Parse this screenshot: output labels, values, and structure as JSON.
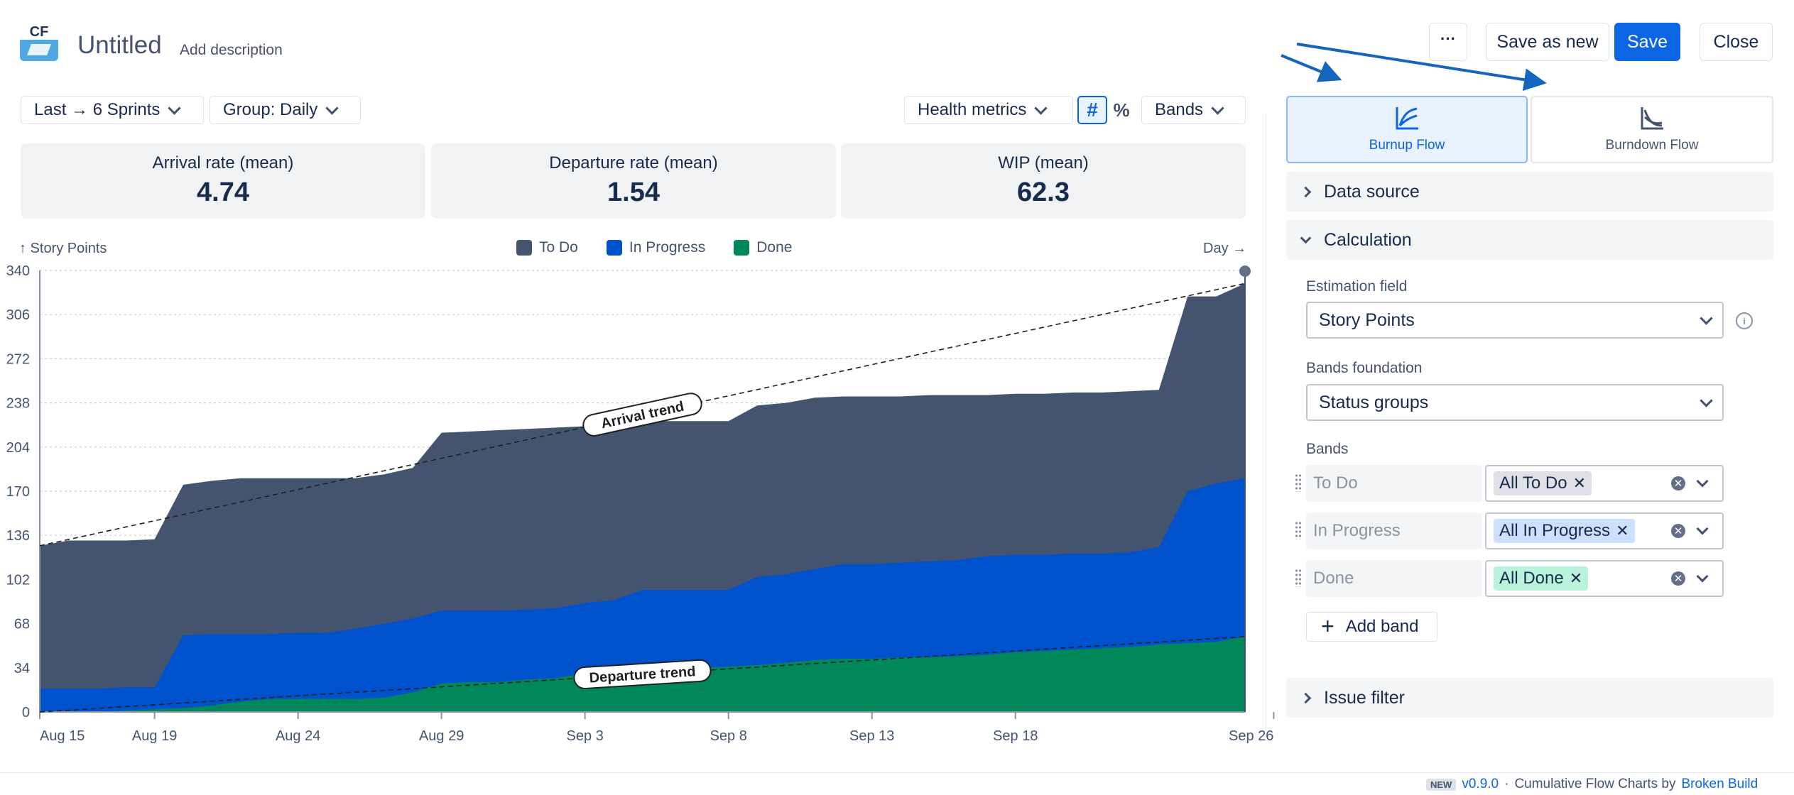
{
  "header": {
    "logo_text": "CF",
    "title": "Untitled",
    "add_description": "Add description",
    "more_label": "···",
    "save_as_new": "Save as new",
    "save": "Save",
    "close": "Close"
  },
  "toolbar": {
    "range": "Last → 6 Sprints",
    "group": "Group: Daily",
    "health_metrics": "Health metrics",
    "count_toggle": "#",
    "percent_toggle": "%",
    "bands": "Bands"
  },
  "metrics": [
    {
      "label": "Arrival rate (mean)",
      "value": "4.74"
    },
    {
      "label": "Departure rate (mean)",
      "value": "1.54"
    },
    {
      "label": "WIP (mean)",
      "value": "62.3"
    }
  ],
  "chart_data": {
    "type": "area",
    "ylabel": "↑ Story Points",
    "xlabel": "Day →",
    "ylim": [
      0,
      340
    ],
    "yticks": [
      0,
      34,
      68,
      102,
      136,
      170,
      204,
      238,
      272,
      306,
      340
    ],
    "xtick_labels": [
      "Aug 15",
      "Aug 19",
      "Aug 24",
      "Aug 29",
      "Sep 3",
      "Sep 8",
      "Sep 13",
      "Sep 18",
      "Sep 26"
    ],
    "xtick_index": [
      0,
      4,
      9,
      14,
      19,
      24,
      29,
      34,
      43
    ],
    "grid": true,
    "legend_placement": "top-center",
    "x": [
      "Aug 15",
      "Aug 16",
      "Aug 17",
      "Aug 18",
      "Aug 19",
      "Aug 20",
      "Aug 21",
      "Aug 22",
      "Aug 23",
      "Aug 24",
      "Aug 25",
      "Aug 26",
      "Aug 27",
      "Aug 28",
      "Aug 29",
      "Aug 30",
      "Aug 31",
      "Sep 1",
      "Sep 2",
      "Sep 3",
      "Sep 4",
      "Sep 5",
      "Sep 6",
      "Sep 7",
      "Sep 8",
      "Sep 9",
      "Sep 10",
      "Sep 11",
      "Sep 12",
      "Sep 13",
      "Sep 14",
      "Sep 15",
      "Sep 16",
      "Sep 17",
      "Sep 18",
      "Sep 19",
      "Sep 20",
      "Sep 21",
      "Sep 22",
      "Sep 23",
      "Sep 24",
      "Sep 25",
      "Sep 26"
    ],
    "series": [
      {
        "name": "Done",
        "color": "#00875a",
        "values": [
          0,
          0,
          0,
          1,
          2,
          3,
          5,
          8,
          10,
          10,
          10,
          10,
          11,
          15,
          22,
          23,
          23,
          25,
          26,
          30,
          31,
          32,
          33,
          34,
          35,
          36,
          38,
          40,
          41,
          41,
          42,
          42,
          43,
          44,
          46,
          47,
          48,
          49,
          50,
          52,
          53,
          54,
          58
        ]
      },
      {
        "name": "In Progress",
        "color": "#0052cc",
        "values": [
          18,
          18,
          18,
          19,
          19,
          59,
          60,
          60,
          60,
          61,
          61,
          64,
          68,
          72,
          78,
          78,
          78,
          79,
          80,
          84,
          86,
          94,
          94,
          94,
          94,
          104,
          106,
          110,
          114,
          114,
          115,
          116,
          117,
          120,
          121,
          121,
          122,
          122,
          123,
          127,
          170,
          176,
          180
        ]
      },
      {
        "name": "To Do",
        "color": "#44546f",
        "values": [
          128,
          132,
          132,
          132,
          133,
          175,
          178,
          180,
          180,
          180,
          180,
          180,
          183,
          188,
          215,
          216,
          217,
          218,
          219,
          220,
          222,
          224,
          224,
          224,
          224,
          236,
          238,
          242,
          243,
          243,
          243,
          244,
          244,
          244,
          245,
          245,
          246,
          246,
          247,
          248,
          320,
          320,
          330
        ]
      }
    ],
    "annotations": [
      "Arrival trend",
      "Departure trend"
    ]
  },
  "panel": {
    "burnup_label": "Burnup Flow",
    "burndown_label": "Burndown Flow",
    "data_source": "Data source",
    "calculation": "Calculation",
    "estimation_field_label": "Estimation field",
    "estimation_field_value": "Story Points",
    "bands_foundation_label": "Bands foundation",
    "bands_foundation_value": "Status groups",
    "bands_label": "Bands",
    "bands": [
      {
        "name": "To Do",
        "tag": "All To Do",
        "tag_color": "#dfe1e6"
      },
      {
        "name": "In Progress",
        "tag": "All In Progress",
        "tag_color": "#cce0ff"
      },
      {
        "name": "Done",
        "tag": "All Done",
        "tag_color": "#baf3db"
      }
    ],
    "add_band": "Add band",
    "issue_filter": "Issue filter"
  },
  "footer": {
    "new_badge": "NEW",
    "version": "v0.9.0",
    "sep": "·",
    "product": "Cumulative Flow Charts by",
    "vendor": "Broken Build"
  }
}
